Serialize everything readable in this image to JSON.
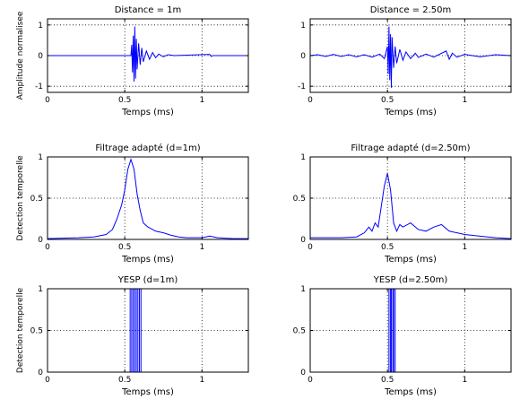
{
  "chart_data": [
    {
      "type": "line",
      "title": "Distance = 1m",
      "xlabel": "Temps (ms)",
      "ylabel": "Amplitude normalisee",
      "xlim": [
        0,
        1.3
      ],
      "ylim": [
        -1.2,
        1.2
      ],
      "xticks": [
        0,
        0.5,
        1
      ],
      "yticks": [
        -1,
        0,
        1
      ],
      "xtick_labels": [
        "0",
        "0.5",
        "1"
      ],
      "ytick_labels": [
        "-1",
        "0",
        "1"
      ],
      "grid": true,
      "series": [
        {
          "color": "#0000ff",
          "x": [
            0,
            0.54,
            0.545,
            0.55,
            0.555,
            0.56,
            0.565,
            0.57,
            0.575,
            0.58,
            0.59,
            0.6,
            0.61,
            0.62,
            0.64,
            0.66,
            0.68,
            0.7,
            0.72,
            0.75,
            0.78,
            0.82,
            1.05,
            1.06,
            1.07,
            1.3
          ],
          "y": [
            0,
            0,
            0.35,
            -0.55,
            0.65,
            -0.85,
            0.95,
            -0.75,
            0.55,
            -0.45,
            0.4,
            -0.3,
            0.25,
            -0.2,
            0.15,
            -0.12,
            0.1,
            -0.07,
            0.05,
            -0.04,
            0.03,
            0,
            0.04,
            -0.03,
            0,
            0
          ]
        }
      ]
    },
    {
      "type": "line",
      "title": "Distance = 2.50m",
      "xlabel": "Temps (ms)",
      "ylabel": "",
      "xlim": [
        0,
        1.3
      ],
      "ylim": [
        -1.2,
        1.2
      ],
      "xticks": [
        0,
        0.5,
        1
      ],
      "yticks": [
        -1,
        0,
        1
      ],
      "xtick_labels": [
        "0",
        "0.5",
        "1"
      ],
      "ytick_labels": [
        "-1",
        "0",
        "1"
      ],
      "grid": true,
      "series": [
        {
          "color": "#0000ff",
          "x": [
            0,
            0.05,
            0.1,
            0.15,
            0.2,
            0.25,
            0.3,
            0.35,
            0.4,
            0.45,
            0.48,
            0.5,
            0.505,
            0.51,
            0.515,
            0.52,
            0.525,
            0.53,
            0.54,
            0.55,
            0.56,
            0.58,
            0.6,
            0.62,
            0.65,
            0.68,
            0.7,
            0.75,
            0.8,
            0.88,
            0.9,
            0.92,
            0.95,
            1.0,
            1.1,
            1.2,
            1.3
          ],
          "y": [
            0,
            0.03,
            -0.03,
            0.04,
            -0.03,
            0.03,
            -0.04,
            0.03,
            -0.05,
            0.05,
            -0.1,
            0.3,
            -0.6,
            0.95,
            -0.8,
            0.7,
            -1.05,
            0.6,
            -0.4,
            0.3,
            -0.25,
            0.2,
            -0.15,
            0.12,
            -0.1,
            0.08,
            -0.06,
            0.05,
            -0.05,
            0.15,
            -0.12,
            0.08,
            -0.05,
            0.04,
            -0.04,
            0.03,
            0
          ]
        }
      ]
    },
    {
      "type": "line",
      "title": "Filtrage adapté (d=1m)",
      "xlabel": "Temps (ms)",
      "ylabel": "Detection temporelle",
      "xlim": [
        0,
        1.3
      ],
      "ylim": [
        0,
        1
      ],
      "xticks": [
        0,
        0.5,
        1
      ],
      "yticks": [
        0,
        0.5,
        1
      ],
      "xtick_labels": [
        "0",
        "0.5",
        "1"
      ],
      "ytick_labels": [
        "0",
        "0.5",
        "1"
      ],
      "grid": true,
      "series": [
        {
          "color": "#0000ff",
          "x": [
            0,
            0.2,
            0.3,
            0.38,
            0.42,
            0.45,
            0.48,
            0.5,
            0.52,
            0.54,
            0.56,
            0.58,
            0.6,
            0.62,
            0.65,
            0.7,
            0.75,
            0.8,
            0.85,
            0.9,
            0.95,
            1.0,
            1.05,
            1.1,
            1.2,
            1.3
          ],
          "y": [
            0.01,
            0.02,
            0.03,
            0.06,
            0.12,
            0.25,
            0.42,
            0.6,
            0.85,
            0.97,
            0.85,
            0.55,
            0.35,
            0.2,
            0.15,
            0.1,
            0.08,
            0.05,
            0.03,
            0.02,
            0.02,
            0.02,
            0.04,
            0.02,
            0.01,
            0.01
          ]
        }
      ]
    },
    {
      "type": "line",
      "title": "Filtrage adapté (d=2.50m)",
      "xlabel": "Temps (ms)",
      "ylabel": "",
      "xlim": [
        0,
        1.3
      ],
      "ylim": [
        0,
        1
      ],
      "xticks": [
        0,
        0.5,
        1
      ],
      "yticks": [
        0,
        0.5,
        1
      ],
      "xtick_labels": [
        "0",
        "0.5",
        "1"
      ],
      "ytick_labels": [
        "0",
        "0.5",
        "1"
      ],
      "grid": true,
      "series": [
        {
          "color": "#0000ff",
          "x": [
            0,
            0.2,
            0.3,
            0.35,
            0.38,
            0.4,
            0.42,
            0.44,
            0.46,
            0.48,
            0.5,
            0.52,
            0.54,
            0.56,
            0.58,
            0.6,
            0.65,
            0.7,
            0.75,
            0.8,
            0.85,
            0.9,
            0.95,
            1.0,
            1.1,
            1.2,
            1.3
          ],
          "y": [
            0.02,
            0.02,
            0.03,
            0.08,
            0.15,
            0.1,
            0.2,
            0.15,
            0.4,
            0.65,
            0.8,
            0.6,
            0.2,
            0.1,
            0.18,
            0.15,
            0.2,
            0.12,
            0.1,
            0.15,
            0.18,
            0.1,
            0.08,
            0.06,
            0.04,
            0.02,
            0.01
          ]
        }
      ]
    },
    {
      "type": "line",
      "title": "YESP (d=1m)",
      "xlabel": "Temps (ms)",
      "ylabel": "Detection temporelle",
      "xlim": [
        0,
        1.3
      ],
      "ylim": [
        0,
        1
      ],
      "xticks": [
        0,
        0.5,
        1
      ],
      "yticks": [
        0,
        0.5,
        1
      ],
      "xtick_labels": [
        "0",
        "0.5",
        "1"
      ],
      "ytick_labels": [
        "0",
        "0.5",
        "1"
      ],
      "grid": true,
      "series": [
        {
          "color": "#0000ff",
          "x": [
            0,
            0.535,
            0.535,
            0.545,
            0.545,
            0.555,
            0.555,
            0.565,
            0.565,
            0.575,
            0.575,
            0.585,
            0.585,
            0.595,
            0.595,
            0.605,
            0.605,
            1.3
          ],
          "y": [
            0,
            0,
            1,
            1,
            0,
            0,
            1,
            1,
            0,
            0,
            1,
            1,
            0,
            0,
            1,
            1,
            0,
            0
          ]
        }
      ]
    },
    {
      "type": "line",
      "title": "YESP (d=2.50m)",
      "xlabel": "Temps (ms)",
      "ylabel": "",
      "xlim": [
        0,
        1.3
      ],
      "ylim": [
        0,
        1
      ],
      "xticks": [
        0,
        0.5,
        1
      ],
      "yticks": [
        0,
        0.5,
        1
      ],
      "xtick_labels": [
        "0",
        "0.5",
        "1"
      ],
      "ytick_labels": [
        "0",
        "0.5",
        "1"
      ],
      "grid": true,
      "series": [
        {
          "color": "#0000ff",
          "x": [
            0,
            0.51,
            0.51,
            0.52,
            0.52,
            0.525,
            0.525,
            0.535,
            0.535,
            0.54,
            0.54,
            0.55,
            0.55,
            1.3
          ],
          "y": [
            0,
            0,
            1,
            1,
            0,
            0,
            1,
            1,
            0,
            0,
            1,
            1,
            0,
            0
          ]
        }
      ]
    }
  ]
}
